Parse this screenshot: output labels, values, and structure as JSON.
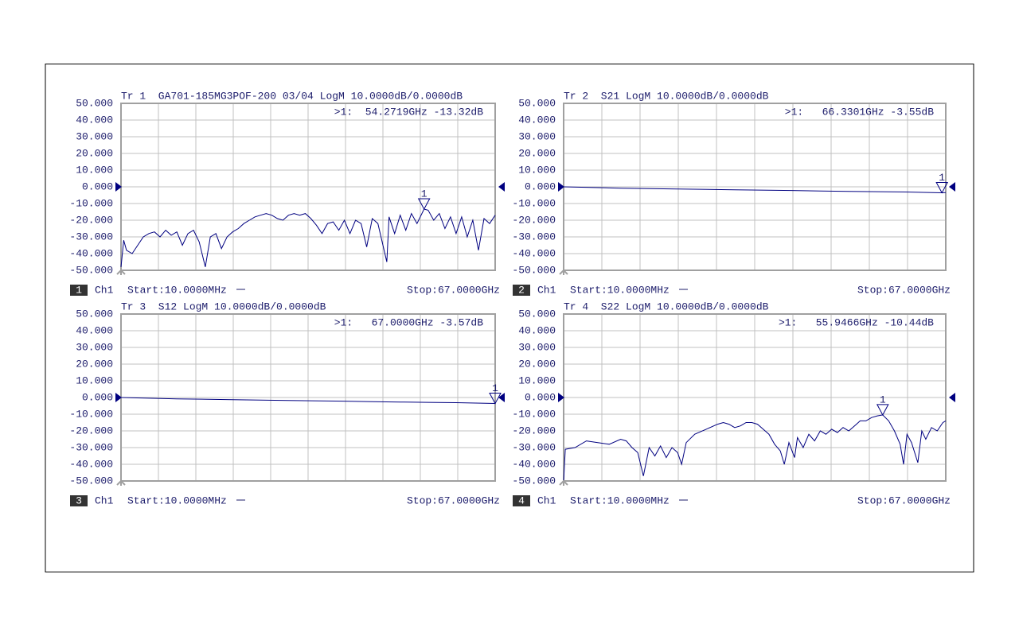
{
  "chart_data": [
    {
      "type": "line",
      "title": "Tr 1  GA701-185MG3POF-200 03/04 LogM 10.0000dB/0.0000dB",
      "trace_number": "1",
      "channel": "Ch1",
      "start": "Start:10.0000MHz",
      "stop": "Stop:67.0000GHz",
      "xlim": [
        0.01,
        67
      ],
      "ylim": [
        -50,
        50
      ],
      "reference_level": 0,
      "grid": true,
      "color": "#000080",
      "yticks": [
        {
          "value": 50,
          "label": "50.000"
        },
        {
          "value": 40,
          "label": "40.000"
        },
        {
          "value": 30,
          "label": "30.000"
        },
        {
          "value": 20,
          "label": "20.000"
        },
        {
          "value": 10,
          "label": "10.000"
        },
        {
          "value": 0,
          "label": "0.000"
        },
        {
          "value": -10,
          "label": "-10.000"
        },
        {
          "value": -20,
          "label": "-20.000"
        },
        {
          "value": -30,
          "label": "-30.000"
        },
        {
          "value": -40,
          "label": "-40.000"
        },
        {
          "value": -50,
          "label": "-50.000"
        }
      ],
      "x": [
        0.01,
        0.5,
        1,
        2,
        3,
        4,
        5,
        6,
        7,
        8,
        9,
        10,
        11,
        12,
        13,
        14,
        15.1,
        16,
        17,
        18,
        19,
        20,
        21,
        22,
        23,
        24,
        25,
        26,
        27,
        28,
        29,
        30,
        31,
        32,
        33,
        34,
        35,
        36,
        37,
        38,
        39,
        40,
        41,
        42,
        43,
        44,
        45,
        46,
        47.6,
        48,
        49,
        50,
        51,
        52,
        53,
        54.2719,
        55,
        56,
        57,
        58,
        59,
        60,
        61,
        62,
        63,
        64,
        65,
        66,
        67
      ],
      "values": [
        -48,
        -32,
        -38,
        -40,
        -35,
        -30,
        -28,
        -27,
        -30,
        -26,
        -29,
        -27,
        -35,
        -28,
        -26,
        -33,
        -48,
        -30,
        -28,
        -37,
        -30,
        -27,
        -25,
        -22,
        -20,
        -18,
        -17,
        -16,
        -17,
        -19,
        -20,
        -17,
        -16,
        -17,
        -16,
        -19,
        -23,
        -28,
        -22,
        -21,
        -26,
        -20,
        -28,
        -20,
        -22,
        -36,
        -19,
        -22,
        -45,
        -18,
        -28,
        -17,
        -26,
        -16,
        -22,
        -13.32,
        -14,
        -20,
        -16,
        -25,
        -18,
        -28,
        -18,
        -30,
        -20,
        -38,
        -19,
        -22,
        -17
      ],
      "markers": [
        {
          "label": "1",
          "x": 54.2719,
          "y": -13.32,
          "readout": ">1:  54.2719GHz -13.32dB"
        }
      ]
    },
    {
      "type": "line",
      "title": "Tr 2  S21 LogM 10.0000dB/0.0000dB",
      "trace_number": "2",
      "channel": "Ch1",
      "start": "Start:10.0000MHz",
      "stop": "Stop:67.0000GHz",
      "xlim": [
        0.01,
        67
      ],
      "ylim": [
        -50,
        50
      ],
      "reference_level": 0,
      "grid": true,
      "color": "#000080",
      "yticks": [
        {
          "value": 50,
          "label": "50.000"
        },
        {
          "value": 40,
          "label": "40.000"
        },
        {
          "value": 30,
          "label": "30.000"
        },
        {
          "value": 20,
          "label": "20.000"
        },
        {
          "value": 10,
          "label": "10.000"
        },
        {
          "value": 0,
          "label": "0.000"
        },
        {
          "value": -10,
          "label": "-10.000"
        },
        {
          "value": -20,
          "label": "-20.000"
        },
        {
          "value": -30,
          "label": "-30.000"
        },
        {
          "value": -40,
          "label": "-40.000"
        },
        {
          "value": -50,
          "label": "-50.000"
        }
      ],
      "x": [
        0.01,
        10,
        20,
        30,
        40,
        45,
        50,
        55,
        60,
        66.3301,
        67
      ],
      "values": [
        0,
        -0.8,
        -1.3,
        -1.8,
        -2.2,
        -2.5,
        -2.7,
        -2.9,
        -3.1,
        -3.55,
        -3.5
      ],
      "markers": [
        {
          "label": "1",
          "x": 66.3301,
          "y": -3.55,
          "readout": ">1:   66.3301GHz -3.55dB"
        }
      ]
    },
    {
      "type": "line",
      "title": "Tr 3  S12 LogM 10.0000dB/0.0000dB",
      "trace_number": "3",
      "channel": "Ch1",
      "start": "Start:10.0000MHz",
      "stop": "Stop:67.0000GHz",
      "xlim": [
        0.01,
        67
      ],
      "ylim": [
        -50,
        50
      ],
      "reference_level": 0,
      "grid": true,
      "color": "#000080",
      "yticks": [
        {
          "value": 50,
          "label": "50.000"
        },
        {
          "value": 40,
          "label": "40.000"
        },
        {
          "value": 30,
          "label": "30.000"
        },
        {
          "value": 20,
          "label": "20.000"
        },
        {
          "value": 10,
          "label": "10.000"
        },
        {
          "value": 0,
          "label": "0.000"
        },
        {
          "value": -10,
          "label": "-10.000"
        },
        {
          "value": -20,
          "label": "-20.000"
        },
        {
          "value": -30,
          "label": "-30.000"
        },
        {
          "value": -40,
          "label": "-40.000"
        },
        {
          "value": -50,
          "label": "-50.000"
        }
      ],
      "x": [
        0.01,
        10,
        20,
        30,
        40,
        45,
        50,
        55,
        60,
        67
      ],
      "values": [
        0,
        -0.8,
        -1.3,
        -1.8,
        -2.2,
        -2.5,
        -2.7,
        -2.9,
        -3.1,
        -3.57
      ],
      "markers": [
        {
          "label": "1",
          "x": 67.0,
          "y": -3.57,
          "readout": ">1:   67.0000GHz -3.57dB"
        }
      ]
    },
    {
      "type": "line",
      "title": "Tr 4  S22 LogM 10.0000dB/0.0000dB",
      "trace_number": "4",
      "channel": "Ch1",
      "start": "Start:10.0000MHz",
      "stop": "Stop:67.0000GHz",
      "xlim": [
        0.01,
        67
      ],
      "ylim": [
        -50,
        50
      ],
      "reference_level": 0,
      "grid": true,
      "color": "#000080",
      "yticks": [
        {
          "value": 50,
          "label": "50.000"
        },
        {
          "value": 40,
          "label": "40.000"
        },
        {
          "value": 30,
          "label": "30.000"
        },
        {
          "value": 20,
          "label": "20.000"
        },
        {
          "value": 10,
          "label": "10.000"
        },
        {
          "value": 0,
          "label": "0.000"
        },
        {
          "value": -10,
          "label": "-10.000"
        },
        {
          "value": -20,
          "label": "-20.000"
        },
        {
          "value": -30,
          "label": "-30.000"
        },
        {
          "value": -40,
          "label": "-40.000"
        },
        {
          "value": -50,
          "label": "-50.000"
        }
      ],
      "x": [
        0.01,
        0.3,
        2,
        4,
        6,
        8,
        10,
        11,
        12,
        13,
        14,
        15,
        16,
        17,
        18,
        19,
        20,
        20.7,
        21.5,
        23,
        25,
        27,
        28,
        29,
        30,
        31,
        32,
        33,
        34,
        35,
        36,
        37,
        38,
        38.7,
        39.5,
        40.5,
        41,
        42,
        43,
        44,
        45,
        46,
        47,
        48,
        49,
        50,
        51,
        52,
        53,
        54,
        55,
        55.9466,
        57,
        58,
        59,
        59.6,
        60.2,
        61,
        62.1,
        62.8,
        63.5,
        64.5,
        65.5,
        66.5,
        67
      ],
      "values": [
        -50,
        -31,
        -30,
        -26,
        -27,
        -28,
        -25,
        -26,
        -30,
        -33,
        -47,
        -30,
        -35,
        -29,
        -36,
        -30,
        -33,
        -40,
        -27,
        -22,
        -19,
        -16,
        -15,
        -16,
        -18,
        -17,
        -15,
        -15,
        -16,
        -19,
        -22,
        -28,
        -32,
        -40,
        -27,
        -36,
        -24,
        -30,
        -22,
        -26,
        -20,
        -22,
        -19,
        -21,
        -18,
        -20,
        -17,
        -14,
        -14,
        -12,
        -11,
        -10.44,
        -14,
        -20,
        -28,
        -40,
        -22,
        -27,
        -39,
        -20,
        -25,
        -18,
        -20,
        -15,
        -14
      ],
      "markers": [
        {
          "label": "1",
          "x": 55.9466,
          "y": -10.44,
          "readout": ">1:   55.9466GHz -10.44dB"
        }
      ]
    }
  ]
}
